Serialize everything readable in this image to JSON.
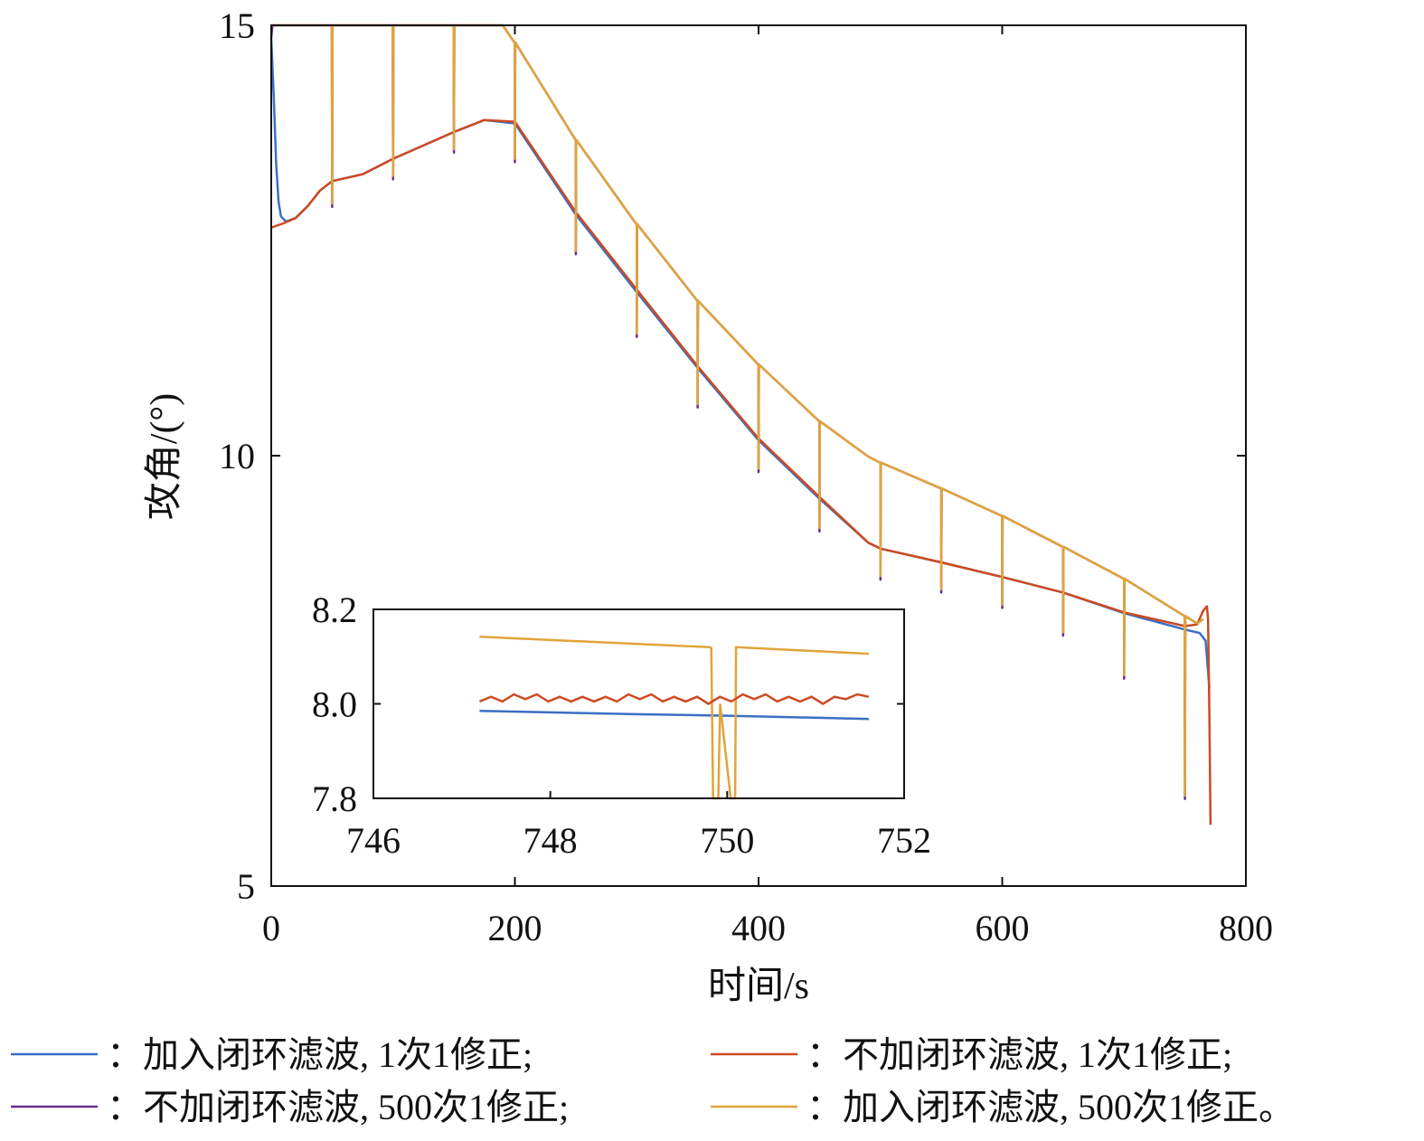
{
  "chart_data": {
    "type": "line",
    "xlabel": "时间/s",
    "ylabel": "攻角/(°)",
    "xlim": [
      0,
      800
    ],
    "ylim": [
      5,
      15
    ],
    "xticks": [
      "0",
      "200",
      "400",
      "600",
      "800"
    ],
    "yticks": [
      "5",
      "10",
      "15"
    ],
    "grid": false,
    "legend_position": "bottom",
    "series": [
      {
        "name": "：加入闭环滤波, 1次1修正;",
        "color": "#3a6fc4",
        "points": [
          [
            0,
            14.85
          ],
          [
            2,
            14.2
          ],
          [
            4,
            13.4
          ],
          [
            6,
            12.95
          ],
          [
            8,
            12.78
          ],
          [
            12,
            12.72
          ],
          [
            20,
            12.76
          ],
          [
            30,
            12.9
          ],
          [
            40,
            13.08
          ],
          [
            50,
            13.19
          ],
          [
            75,
            13.27
          ],
          [
            100,
            13.45
          ],
          [
            150,
            13.76
          ],
          [
            175,
            13.9
          ],
          [
            200,
            13.86
          ],
          [
            250,
            12.8
          ],
          [
            300,
            11.9
          ],
          [
            350,
            11.02
          ],
          [
            400,
            10.18
          ],
          [
            450,
            9.5
          ],
          [
            490,
            8.99
          ],
          [
            500,
            8.92
          ],
          [
            550,
            8.76
          ],
          [
            600,
            8.59
          ],
          [
            650,
            8.41
          ],
          [
            700,
            8.17
          ],
          [
            750,
            7.98
          ],
          [
            762,
            7.94
          ],
          [
            767,
            7.85
          ],
          [
            770,
            7.3
          ]
        ]
      },
      {
        "name": "：不加闭环滤波, 1次1修正;",
        "color": "#cc4a22",
        "points": [
          [
            0,
            12.65
          ],
          [
            10,
            12.7
          ],
          [
            20,
            12.76
          ],
          [
            30,
            12.9
          ],
          [
            40,
            13.08
          ],
          [
            50,
            13.19
          ],
          [
            75,
            13.27
          ],
          [
            100,
            13.45
          ],
          [
            150,
            13.76
          ],
          [
            175,
            13.9
          ],
          [
            200,
            13.88
          ],
          [
            250,
            12.83
          ],
          [
            300,
            11.93
          ],
          [
            350,
            11.04
          ],
          [
            400,
            10.2
          ],
          [
            450,
            9.52
          ],
          [
            490,
            8.99
          ],
          [
            500,
            8.92
          ],
          [
            550,
            8.76
          ],
          [
            600,
            8.59
          ],
          [
            650,
            8.41
          ],
          [
            700,
            8.18
          ],
          [
            750,
            8.02
          ],
          [
            760,
            8.04
          ],
          [
            765,
            8.2
          ],
          [
            768,
            8.25
          ],
          [
            769,
            8.1
          ],
          [
            770,
            7.0
          ],
          [
            771,
            5.71
          ]
        ]
      },
      {
        "name": "：不加闭环滤波, 500次1修正;",
        "color": "#6a2c91",
        "points": [
          [
            0,
            14.85
          ],
          [
            1,
            15
          ],
          [
            190,
            15
          ],
          [
            200,
            14.8
          ],
          [
            250,
            13.67
          ],
          [
            300,
            12.69
          ],
          [
            350,
            11.8
          ],
          [
            400,
            11.06
          ],
          [
            450,
            10.4
          ],
          [
            490,
            9.99
          ],
          [
            500,
            9.92
          ],
          [
            550,
            9.62
          ],
          [
            600,
            9.3
          ],
          [
            650,
            8.94
          ],
          [
            700,
            8.57
          ],
          [
            760,
            8.05
          ],
          [
            765,
            8.1
          ]
        ]
      },
      {
        "name": "：加入闭环滤波, 500次1修正。",
        "color": "#e0a43a",
        "points": [
          [
            0,
            15
          ],
          [
            190,
            15
          ],
          [
            200,
            14.8
          ],
          [
            250,
            13.67
          ],
          [
            300,
            12.69
          ],
          [
            350,
            11.8
          ],
          [
            400,
            11.06
          ],
          [
            450,
            10.4
          ],
          [
            490,
            9.99
          ],
          [
            500,
            9.92
          ],
          [
            550,
            9.62
          ],
          [
            600,
            9.3
          ],
          [
            650,
            8.94
          ],
          [
            700,
            8.57
          ],
          [
            760,
            8.05
          ],
          [
            765,
            8.1
          ]
        ]
      }
    ],
    "spikes": {
      "times": [
        50,
        100,
        150,
        200,
        250,
        300,
        350,
        400,
        450,
        500,
        550,
        600,
        650,
        700,
        750
      ],
      "bottoms": [
        12.93,
        13.25,
        13.56,
        13.45,
        12.38,
        11.42,
        10.6,
        9.85,
        9.16,
        8.6,
        8.45,
        8.27,
        7.95,
        7.45,
        6.05
      ]
    },
    "inset": {
      "xlim": [
        746,
        752
      ],
      "ylim": [
        7.8,
        8.2
      ],
      "xticks": [
        "746",
        "748",
        "750",
        "752"
      ],
      "yticks": [
        "7.8",
        "8.0",
        "8.2"
      ],
      "series": [
        {
          "name": "blue",
          "color": "#3a6fc4",
          "points": [
            [
              747.2,
              7.985
            ],
            [
              749,
              7.978
            ],
            [
              750,
              7.975
            ],
            [
              751.6,
              7.968
            ]
          ]
        },
        {
          "name": "yellow",
          "color": "#e0a43a",
          "points": [
            [
              747.2,
              8.142
            ],
            [
              749.8,
              8.12
            ],
            [
              749.82,
              8.118
            ],
            [
              749.84,
              7.8
            ],
            [
              749.9,
              7.8
            ],
            [
              749.92,
              8.0
            ],
            [
              750.04,
              7.8
            ],
            [
              750.09,
              7.8
            ],
            [
              750.1,
              8.12
            ],
            [
              751.6,
              8.106
            ]
          ]
        },
        {
          "name": "red",
          "color": "#cc4a22",
          "start": 747.2,
          "end": 751.6,
          "values": [
            8.005,
            8.015,
            8.005,
            8.02,
            8.01,
            8.02,
            8.005,
            8.015,
            8.005,
            8.015,
            8.005,
            8.015,
            8.005,
            8.02,
            8.01,
            8.02,
            8.005,
            8.015,
            8.005,
            8.015,
            8.0,
            8.015,
            8.005,
            8.02,
            8.01,
            8.02,
            8.005,
            8.015,
            8.005,
            8.015,
            8.0,
            8.015,
            8.01,
            8.02,
            8.015
          ]
        }
      ]
    }
  }
}
